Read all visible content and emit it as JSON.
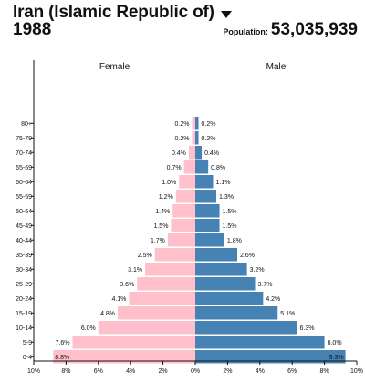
{
  "header": {
    "country": "Iran (Islamic Republic of)",
    "year": "1988",
    "population_label": "Population:",
    "population_value": "53,035,939"
  },
  "chart_data": {
    "type": "bar",
    "orientation": "horizontal-pyramid",
    "categories": [
      "80+",
      "75-79",
      "70-74",
      "65-69",
      "60-64",
      "55-59",
      "50-54",
      "45-49",
      "40-44",
      "35-39",
      "30-34",
      "25-29",
      "20-24",
      "15-19",
      "10-14",
      "5-9",
      "0-4"
    ],
    "series": [
      {
        "name": "Female",
        "color": "#ffc0cb",
        "values": [
          0.2,
          0.2,
          0.4,
          0.7,
          1.0,
          1.2,
          1.4,
          1.5,
          1.7,
          2.5,
          3.1,
          3.6,
          4.1,
          4.8,
          6.0,
          7.6,
          8.8
        ],
        "labels": [
          "0.2%",
          "0.2%",
          "0.4%",
          "0.7%",
          "1.0%",
          "1.2%",
          "1.4%",
          "1.5%",
          "1.7%",
          "2.5%",
          "3.1%",
          "3.6%",
          "4.1%",
          "4.8%",
          "6.0%",
          "7.6%",
          "8.8%"
        ]
      },
      {
        "name": "Male",
        "color": "#4682b4",
        "values": [
          0.2,
          0.2,
          0.4,
          0.8,
          1.1,
          1.3,
          1.5,
          1.5,
          1.8,
          2.6,
          3.2,
          3.7,
          4.2,
          5.1,
          6.3,
          8.0,
          9.3
        ],
        "labels": [
          "0.2%",
          "0.2%",
          "0.4%",
          "0.8%",
          "1.1%",
          "1.3%",
          "1.5%",
          "1.5%",
          "1.8%",
          "2.6%",
          "3.2%",
          "3.7%",
          "4.2%",
          "5.1%",
          "6.3%",
          "8.0%",
          "9.3%"
        ]
      }
    ],
    "xlim": [
      -10,
      10
    ],
    "x_ticks": [
      -10,
      -8,
      -6,
      -4,
      -2,
      0,
      2,
      4,
      6,
      8,
      10
    ],
    "x_tick_labels": [
      "10%",
      "8%",
      "6%",
      "4%",
      "2%",
      "0%",
      "2%",
      "4%",
      "6%",
      "8%",
      "10%"
    ],
    "grid": false
  }
}
